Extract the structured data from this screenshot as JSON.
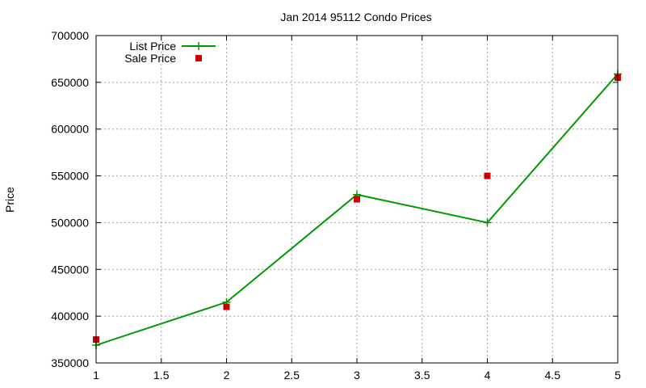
{
  "chart_data": {
    "type": "line",
    "title": "Jan 2014 95112 Condo Prices",
    "xlabel": "",
    "ylabel": "Price",
    "xlim": [
      1,
      5
    ],
    "ylim": [
      350000,
      700000
    ],
    "x_ticks": [
      "1",
      "1.5",
      "2",
      "2.5",
      "3",
      "3.5",
      "4",
      "4.5",
      "5"
    ],
    "y_ticks": [
      "350000",
      "400000",
      "450000",
      "500000",
      "550000",
      "600000",
      "650000",
      "700000"
    ],
    "grid": true,
    "legend_position": "top-left",
    "series": [
      {
        "name": "List Price",
        "style": "linespoints",
        "marker": "plus",
        "color": "#009900",
        "x": [
          1,
          2,
          3,
          4,
          5
        ],
        "values": [
          369000,
          415000,
          530000,
          500000,
          659000
        ]
      },
      {
        "name": "Sale Price",
        "style": "points",
        "marker": "square",
        "color": "#cc0000",
        "x": [
          1,
          2,
          3,
          4,
          5
        ],
        "values": [
          375000,
          410000,
          525000,
          550000,
          655000
        ]
      }
    ]
  }
}
